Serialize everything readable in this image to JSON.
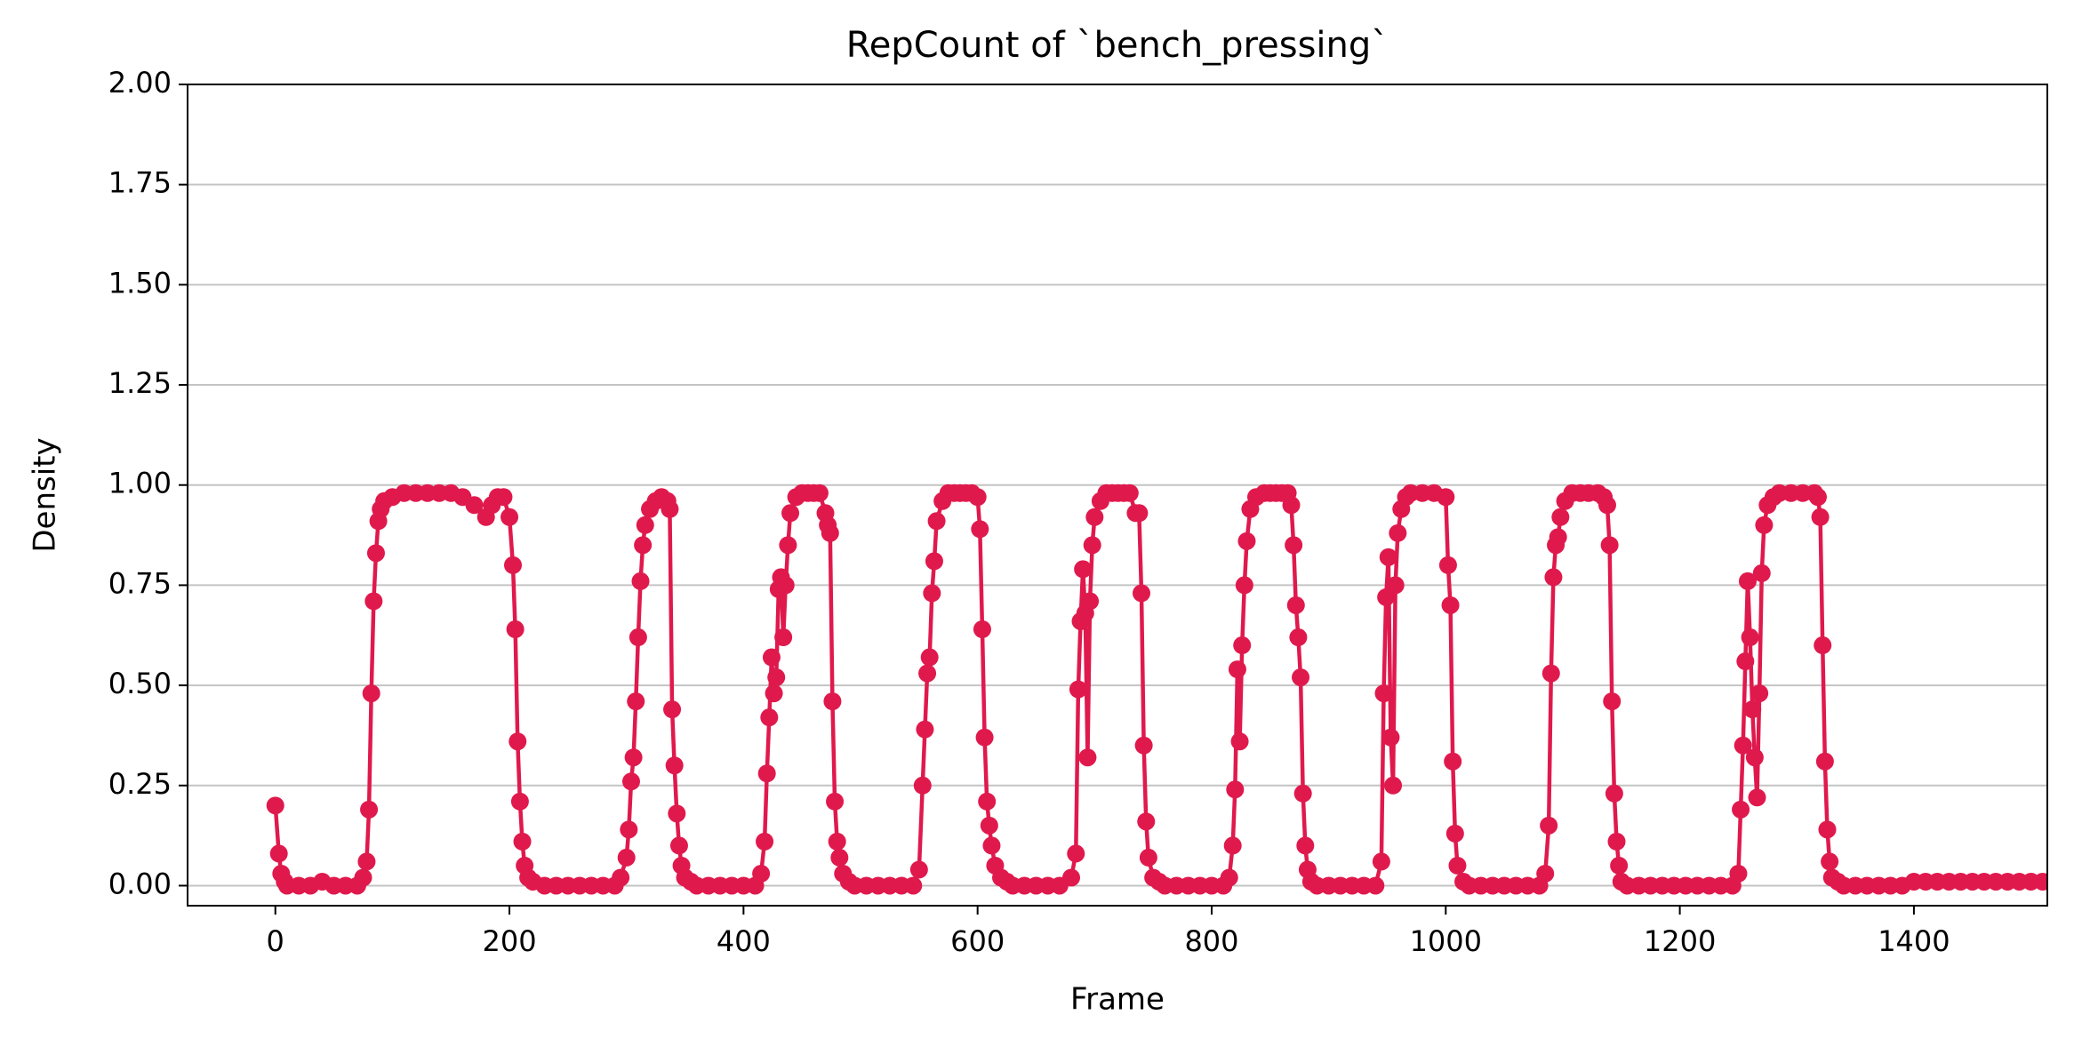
{
  "chart_data": {
    "type": "line",
    "title": "RepCount of `bench_pressing`",
    "xlabel": "Frame",
    "ylabel": "Density",
    "x": [
      0,
      3,
      5,
      8,
      10,
      20,
      30,
      40,
      50,
      60,
      70,
      75,
      78,
      80,
      82,
      84,
      86,
      88,
      90,
      93,
      100,
      110,
      120,
      130,
      140,
      150,
      160,
      170,
      180,
      185,
      190,
      195,
      200,
      203,
      205,
      207,
      209,
      211,
      213,
      216,
      220,
      230,
      240,
      250,
      260,
      270,
      280,
      290,
      295,
      300,
      302,
      304,
      306,
      308,
      310,
      312,
      314,
      316,
      320,
      325,
      330,
      335,
      337,
      339,
      341,
      343,
      345,
      347,
      350,
      355,
      360,
      370,
      380,
      390,
      400,
      410,
      415,
      418,
      420,
      422,
      424,
      426,
      428,
      430,
      432,
      434,
      436,
      438,
      440,
      445,
      450,
      455,
      460,
      465,
      470,
      472,
      474,
      476,
      478,
      480,
      482,
      485,
      490,
      495,
      505,
      515,
      525,
      535,
      545,
      550,
      553,
      555,
      557,
      559,
      561,
      563,
      565,
      570,
      575,
      580,
      585,
      590,
      595,
      600,
      602,
      604,
      606,
      608,
      610,
      612,
      615,
      620,
      625,
      630,
      640,
      650,
      660,
      670,
      680,
      684,
      686,
      688,
      690,
      692,
      694,
      696,
      698,
      700,
      705,
      710,
      715,
      720,
      725,
      730,
      735,
      738,
      740,
      742,
      744,
      746,
      750,
      755,
      760,
      770,
      780,
      790,
      800,
      810,
      815,
      818,
      820,
      822,
      824,
      826,
      828,
      830,
      833,
      838,
      845,
      850,
      855,
      860,
      865,
      868,
      870,
      872,
      874,
      876,
      878,
      880,
      882,
      885,
      890,
      900,
      910,
      920,
      930,
      940,
      945,
      947,
      949,
      951,
      953,
      955,
      957,
      959,
      962,
      966,
      970,
      980,
      990,
      1000,
      1002,
      1004,
      1006,
      1008,
      1010,
      1015,
      1020,
      1030,
      1040,
      1050,
      1060,
      1070,
      1080,
      1085,
      1088,
      1090,
      1092,
      1094,
      1096,
      1098,
      1102,
      1108,
      1115,
      1122,
      1130,
      1135,
      1138,
      1140,
      1142,
      1144,
      1146,
      1148,
      1150,
      1155,
      1165,
      1175,
      1185,
      1195,
      1205,
      1215,
      1225,
      1235,
      1245,
      1250,
      1252,
      1254,
      1256,
      1258,
      1260,
      1262,
      1264,
      1266,
      1268,
      1270,
      1272,
      1275,
      1280,
      1285,
      1295,
      1305,
      1315,
      1318,
      1320,
      1322,
      1324,
      1326,
      1328,
      1330,
      1335,
      1340,
      1350,
      1360,
      1370,
      1380,
      1390,
      1400,
      1410,
      1420,
      1430,
      1440,
      1450,
      1460,
      1470,
      1480,
      1490,
      1500,
      1510
    ],
    "series": [
      {
        "color": "#e0194d",
        "values": [
          0.2,
          0.08,
          0.03,
          0.01,
          0,
          0,
          0,
          0.01,
          0,
          0,
          0,
          0.02,
          0.06,
          0.19,
          0.48,
          0.71,
          0.83,
          0.91,
          0.94,
          0.96,
          0.97,
          0.98,
          0.98,
          0.98,
          0.98,
          0.98,
          0.97,
          0.95,
          0.92,
          0.95,
          0.97,
          0.97,
          0.92,
          0.8,
          0.64,
          0.36,
          0.21,
          0.11,
          0.05,
          0.02,
          0.01,
          0,
          0,
          0,
          0,
          0,
          0,
          0,
          0.02,
          0.07,
          0.14,
          0.26,
          0.32,
          0.46,
          0.62,
          0.76,
          0.85,
          0.9,
          0.94,
          0.96,
          0.97,
          0.96,
          0.94,
          0.44,
          0.3,
          0.18,
          0.1,
          0.05,
          0.02,
          0.01,
          0,
          0,
          0,
          0,
          0,
          0,
          0.03,
          0.11,
          0.28,
          0.42,
          0.57,
          0.48,
          0.52,
          0.74,
          0.77,
          0.62,
          0.75,
          0.85,
          0.93,
          0.97,
          0.98,
          0.98,
          0.98,
          0.98,
          0.93,
          0.9,
          0.88,
          0.46,
          0.21,
          0.11,
          0.07,
          0.03,
          0.01,
          0,
          0,
          0,
          0,
          0,
          0,
          0.04,
          0.25,
          0.39,
          0.53,
          0.57,
          0.73,
          0.81,
          0.91,
          0.96,
          0.98,
          0.98,
          0.98,
          0.98,
          0.98,
          0.97,
          0.89,
          0.64,
          0.37,
          0.21,
          0.15,
          0.1,
          0.05,
          0.02,
          0.01,
          0,
          0,
          0,
          0,
          0,
          0.02,
          0.08,
          0.49,
          0.66,
          0.79,
          0.68,
          0.32,
          0.71,
          0.85,
          0.92,
          0.96,
          0.98,
          0.98,
          0.98,
          0.98,
          0.98,
          0.93,
          0.93,
          0.73,
          0.35,
          0.16,
          0.07,
          0.02,
          0.01,
          0,
          0,
          0,
          0,
          0,
          0,
          0.02,
          0.1,
          0.24,
          0.54,
          0.36,
          0.6,
          0.75,
          0.86,
          0.94,
          0.97,
          0.98,
          0.98,
          0.98,
          0.98,
          0.98,
          0.95,
          0.85,
          0.7,
          0.62,
          0.52,
          0.23,
          0.1,
          0.04,
          0.01,
          0,
          0,
          0,
          0,
          0,
          0,
          0.06,
          0.48,
          0.72,
          0.82,
          0.37,
          0.25,
          0.75,
          0.88,
          0.94,
          0.97,
          0.98,
          0.98,
          0.98,
          0.97,
          0.8,
          0.7,
          0.31,
          0.13,
          0.05,
          0.01,
          0,
          0,
          0,
          0,
          0,
          0,
          0,
          0.03,
          0.15,
          0.53,
          0.77,
          0.85,
          0.87,
          0.92,
          0.96,
          0.98,
          0.98,
          0.98,
          0.98,
          0.97,
          0.95,
          0.85,
          0.46,
          0.23,
          0.11,
          0.05,
          0.01,
          0,
          0,
          0,
          0,
          0,
          0,
          0,
          0,
          0,
          0,
          0.03,
          0.19,
          0.35,
          0.56,
          0.76,
          0.62,
          0.44,
          0.32,
          0.22,
          0.48,
          0.78,
          0.9,
          0.95,
          0.97,
          0.98,
          0.98,
          0.98,
          0.98,
          0.97,
          0.92,
          0.6,
          0.31,
          0.14,
          0.06,
          0.02,
          0.01,
          0,
          0,
          0,
          0,
          0,
          0,
          0.01,
          0.01,
          0.01,
          0.01,
          0.01,
          0.01,
          0.01,
          0.01,
          0.01,
          0.01,
          0.01,
          0.01
        ]
      }
    ],
    "xlim": [
      -75,
      1514
    ],
    "ylim": [
      -0.05,
      2.0
    ],
    "xticks": [
      0,
      200,
      400,
      600,
      800,
      1000,
      1200,
      1400
    ],
    "yticks": [
      {
        "value": 0,
        "label": "0.00"
      },
      {
        "value": 0.25,
        "label": "0.25"
      },
      {
        "value": 0.5,
        "label": "0.50"
      },
      {
        "value": 0.75,
        "label": "0.75"
      },
      {
        "value": 1,
        "label": "1.00"
      },
      {
        "value": 1.25,
        "label": "1.25"
      },
      {
        "value": 1.5,
        "label": "1.50"
      },
      {
        "value": 1.75,
        "label": "1.75"
      },
      {
        "value": 2,
        "label": "2.00"
      }
    ],
    "grid": "y"
  }
}
